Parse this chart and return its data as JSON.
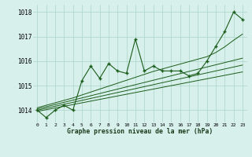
{
  "hours": [
    0,
    1,
    2,
    3,
    4,
    5,
    6,
    7,
    8,
    9,
    10,
    11,
    12,
    13,
    14,
    15,
    16,
    17,
    18,
    19,
    20,
    21,
    22,
    23
  ],
  "pressure": [
    1014.0,
    1013.7,
    1014.0,
    1014.2,
    1014.0,
    1015.2,
    1015.8,
    1015.3,
    1015.9,
    1015.6,
    1015.5,
    1016.9,
    1015.6,
    1015.8,
    1015.6,
    1015.6,
    1015.6,
    1015.4,
    1015.5,
    1016.0,
    1016.6,
    1017.2,
    1018.0,
    1017.7
  ],
  "trend1": [
    1013.95,
    1014.02,
    1014.09,
    1014.16,
    1014.23,
    1014.3,
    1014.37,
    1014.44,
    1014.51,
    1014.58,
    1014.65,
    1014.72,
    1014.79,
    1014.86,
    1014.93,
    1015.0,
    1015.07,
    1015.14,
    1015.21,
    1015.28,
    1015.35,
    1015.42,
    1015.49,
    1015.56
  ],
  "trend2": [
    1014.0,
    1014.08,
    1014.16,
    1014.24,
    1014.32,
    1014.4,
    1014.48,
    1014.56,
    1014.64,
    1014.72,
    1014.8,
    1014.88,
    1014.96,
    1015.04,
    1015.12,
    1015.2,
    1015.28,
    1015.36,
    1015.44,
    1015.52,
    1015.6,
    1015.68,
    1015.76,
    1015.84
  ],
  "trend3": [
    1014.05,
    1014.14,
    1014.23,
    1014.32,
    1014.41,
    1014.5,
    1014.59,
    1014.68,
    1014.77,
    1014.86,
    1014.95,
    1015.04,
    1015.13,
    1015.22,
    1015.31,
    1015.4,
    1015.49,
    1015.58,
    1015.67,
    1015.76,
    1015.85,
    1015.94,
    1016.03,
    1016.12
  ],
  "trend4": [
    1014.1,
    1014.2,
    1014.3,
    1014.4,
    1014.5,
    1014.62,
    1014.74,
    1014.86,
    1014.98,
    1015.1,
    1015.22,
    1015.34,
    1015.46,
    1015.58,
    1015.68,
    1015.78,
    1015.88,
    1015.98,
    1016.08,
    1016.18,
    1016.35,
    1016.58,
    1016.85,
    1017.1
  ],
  "background_color": "#d8f0eb",
  "grid_color": "#aad4c8",
  "line_color": "#1a5c1a",
  "trend_color": "#1a5c1a",
  "ylabel_values": [
    1014,
    1015,
    1016,
    1017,
    1018
  ],
  "xlabel": "Graphe pression niveau de la mer (hPa)",
  "ylim": [
    1013.5,
    1018.3
  ],
  "xlim": [
    -0.5,
    23.5
  ]
}
